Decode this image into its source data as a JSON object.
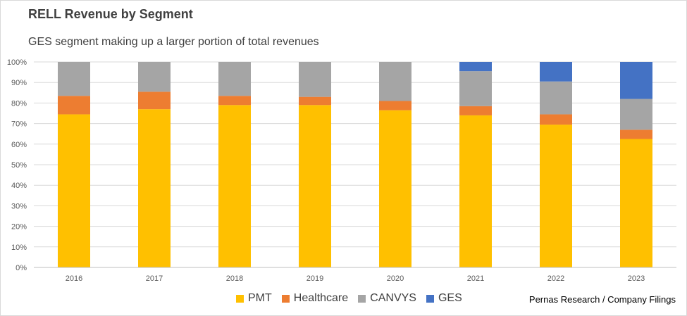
{
  "chart_data": {
    "type": "bar",
    "stacked": true,
    "title": "RELL Revenue by Segment",
    "subtitle": "GES segment making up a larger portion of total revenues",
    "source": "Pernas Research / Company Filings",
    "categories": [
      "2016",
      "2017",
      "2018",
      "2019",
      "2020",
      "2021",
      "2022",
      "2023"
    ],
    "series": [
      {
        "name": "PMT",
        "color": "#FFC000",
        "values": [
          74.5,
          77,
          79,
          79,
          76.5,
          74,
          69.5,
          62.5
        ]
      },
      {
        "name": "Healthcare",
        "color": "#ED7D31",
        "values": [
          9,
          8.5,
          4.5,
          4,
          4.5,
          4.5,
          5,
          4.5
        ]
      },
      {
        "name": "CANVYS",
        "color": "#A5A5A5",
        "values": [
          16.5,
          14.5,
          16.5,
          17,
          19,
          17,
          16,
          15
        ]
      },
      {
        "name": "GES",
        "color": "#4472C4",
        "values": [
          0,
          0,
          0,
          0,
          0,
          4.5,
          9.5,
          18
        ]
      }
    ],
    "ylim": [
      0,
      100
    ],
    "yticks": [
      "0%",
      "10%",
      "20%",
      "30%",
      "40%",
      "50%",
      "60%",
      "70%",
      "80%",
      "90%",
      "100%"
    ],
    "grid": true,
    "legend_position": "bottom"
  }
}
